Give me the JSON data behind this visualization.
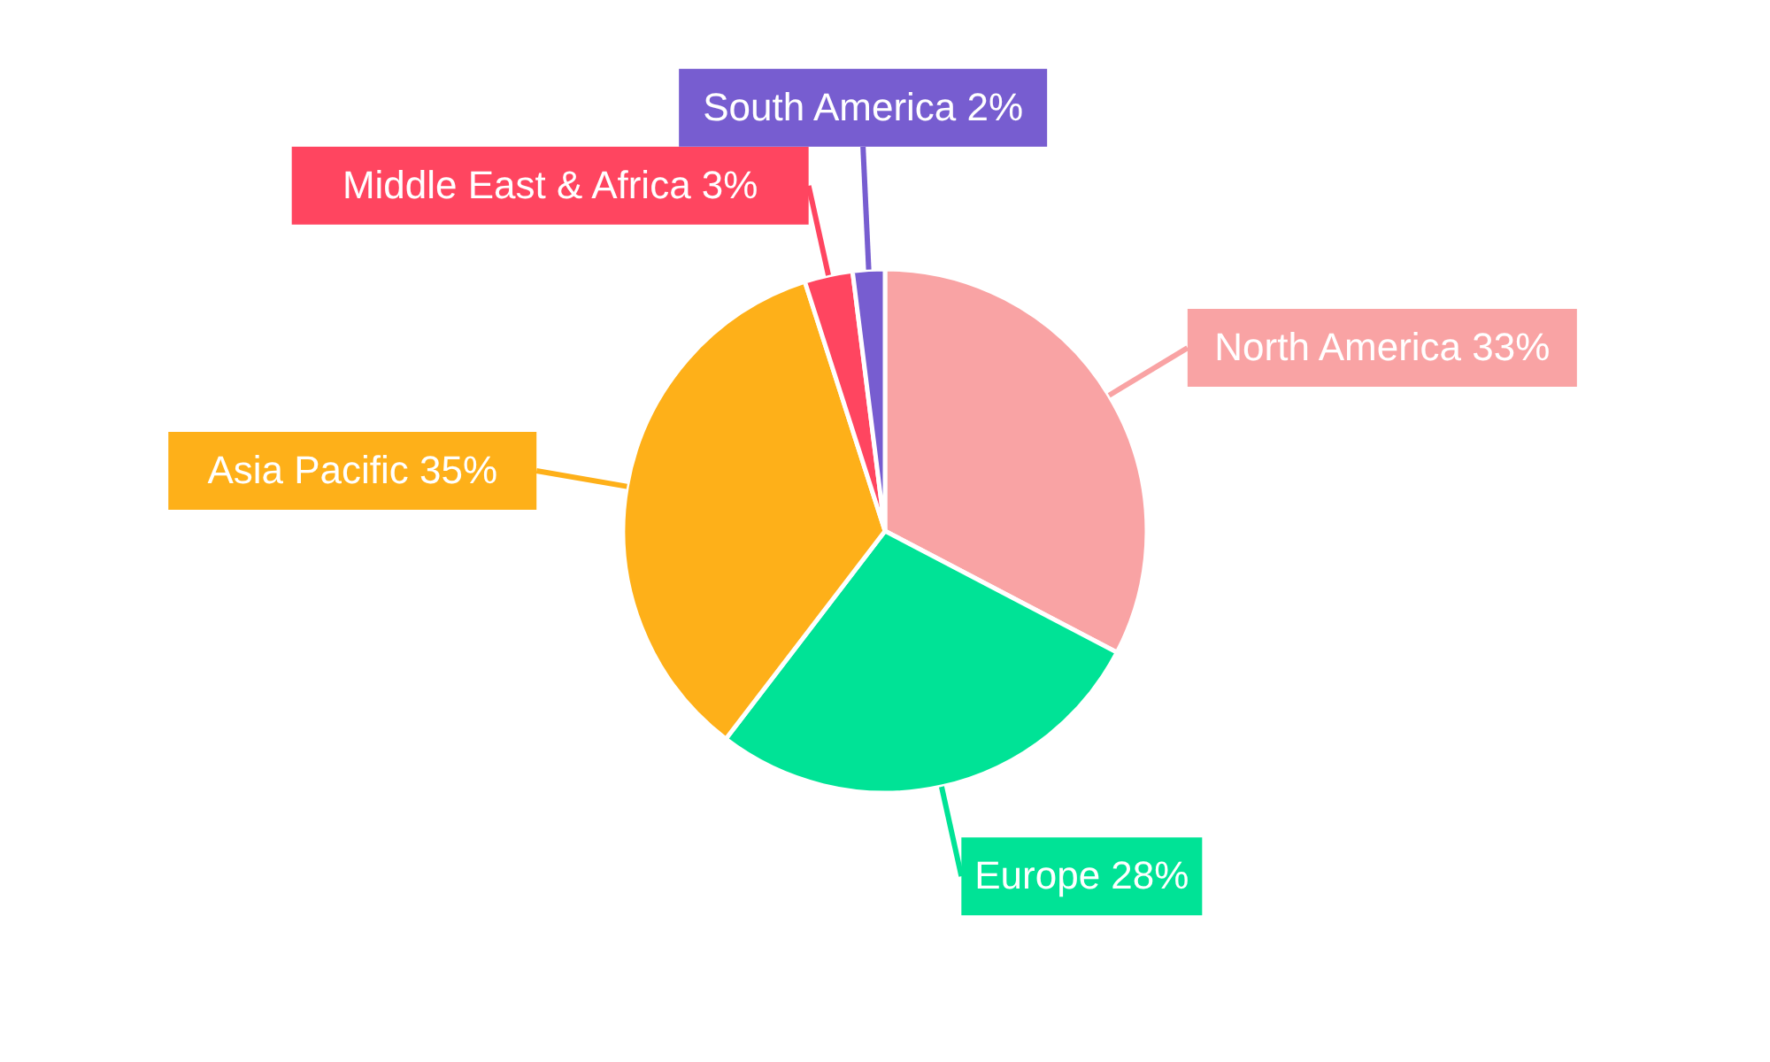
{
  "chart_data": {
    "type": "pie",
    "categories": [
      "North America",
      "Europe",
      "Asia Pacific",
      "Middle East & Africa",
      "South America"
    ],
    "values": [
      33,
      28,
      35,
      3,
      2
    ],
    "value_labels": [
      "33%",
      "28%",
      "35%",
      "3%",
      "2%"
    ],
    "colors": [
      "#f9a3a4",
      "#00e396",
      "#feb019",
      "#ff4560",
      "#775dd0"
    ]
  }
}
